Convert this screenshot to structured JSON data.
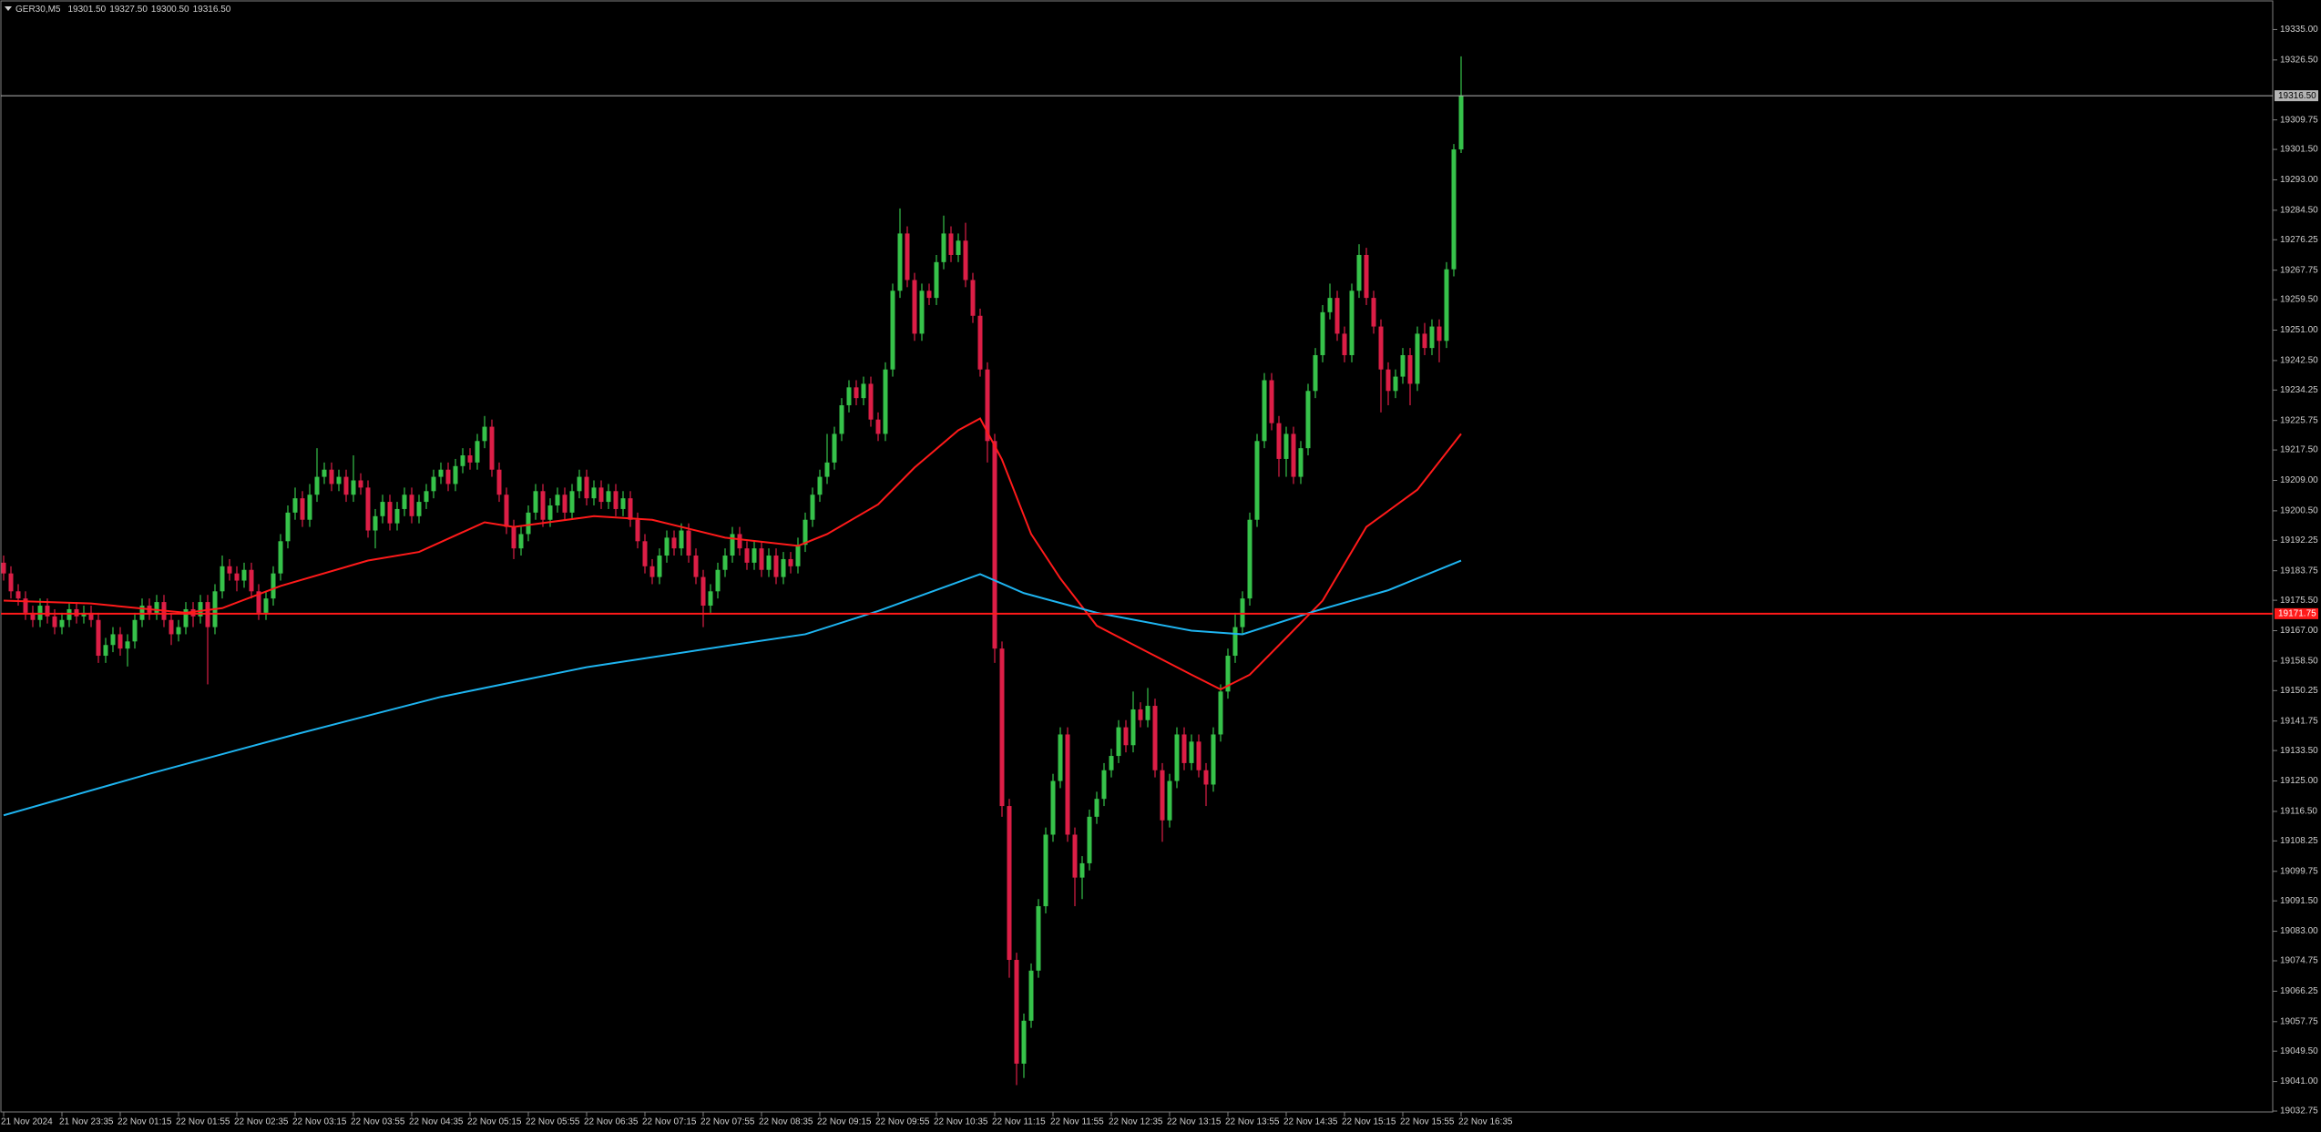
{
  "chart_data": {
    "type": "candlestick",
    "title": "GER30,M5",
    "ohlc_labels": [
      "19301.50",
      "19327.50",
      "19300.50",
      "19316.50"
    ],
    "up_color": "#36c24a",
    "down_color": "#dc1e46",
    "grid": false,
    "categories": [
      "21 Nov 2024",
      null,
      null,
      null,
      null,
      null,
      null,
      null,
      "21 Nov 23:35",
      null,
      null,
      null,
      null,
      null,
      null,
      null,
      "22 Nov 01:15",
      null,
      null,
      null,
      null,
      null,
      null,
      null,
      "22 Nov 01:55",
      null,
      null,
      null,
      null,
      null,
      null,
      null,
      "22 Nov 02:35",
      null,
      null,
      null,
      null,
      null,
      null,
      null,
      "22 Nov 03:15",
      null,
      null,
      null,
      null,
      null,
      null,
      null,
      "22 Nov 03:55",
      null,
      null,
      null,
      null,
      null,
      null,
      null,
      "22 Nov 04:35",
      null,
      null,
      null,
      null,
      null,
      null,
      null,
      "22 Nov 05:15",
      null,
      null,
      null,
      null,
      null,
      null,
      null,
      "22 Nov 05:55",
      null,
      null,
      null,
      null,
      null,
      null,
      null,
      "22 Nov 06:35",
      null,
      null,
      null,
      null,
      null,
      null,
      null,
      "22 Nov 07:15",
      null,
      null,
      null,
      null,
      null,
      null,
      null,
      "22 Nov 07:55",
      null,
      null,
      null,
      null,
      null,
      null,
      null,
      "22 Nov 08:35",
      null,
      null,
      null,
      null,
      null,
      null,
      null,
      "22 Nov 09:15",
      null,
      null,
      null,
      null,
      null,
      null,
      null,
      "22 Nov 09:55",
      null,
      null,
      null,
      null,
      null,
      null,
      null,
      "22 Nov 10:35",
      null,
      null,
      null,
      null,
      null,
      null,
      null,
      "22 Nov 11:15",
      null,
      null,
      null,
      null,
      null,
      null,
      null,
      "22 Nov 11:55",
      null,
      null,
      null,
      null,
      null,
      null,
      null,
      "22 Nov 12:35",
      null,
      null,
      null,
      null,
      null,
      null,
      null,
      "22 Nov 13:15",
      null,
      null,
      null,
      null,
      null,
      null,
      null,
      "22 Nov 13:55",
      null,
      null,
      null,
      null,
      null,
      null,
      null,
      "22 Nov 14:35",
      null,
      null,
      null,
      null,
      null,
      null,
      null,
      "22 Nov 15:15",
      null,
      null,
      null,
      null,
      null,
      null,
      null,
      "22 Nov 15:55",
      null,
      null,
      null,
      null,
      null,
      null,
      null,
      "22 Nov 16:35"
    ],
    "open": [
      19186,
      19183,
      19178,
      19176,
      19172,
      19170,
      19174,
      19171,
      19168,
      19170,
      19173,
      19171,
      19172,
      19170,
      19160,
      19163,
      19166,
      19162,
      19164,
      19170,
      19174,
      19172,
      19175,
      19170,
      19166,
      19168,
      19173,
      19171,
      19175,
      19168,
      19178,
      19185,
      19183,
      19181,
      19184,
      19178,
      19172,
      19176,
      19183,
      19192,
      19200,
      19204,
      19198,
      19205,
      19210,
      19212,
      19208,
      19210,
      19205,
      19209,
      19207,
      19195,
      19199,
      19203,
      19197,
      19201,
      19205,
      19199,
      19203,
      19206,
      19210,
      19212,
      19208,
      19213,
      19216,
      19214,
      19220,
      19224,
      19212,
      19205,
      19196,
      19190,
      19194,
      19200,
      19206,
      19198,
      19202,
      19205,
      19200,
      19206,
      19210,
      19204,
      19207,
      19203,
      19206,
      19201,
      19204,
      19198,
      19192,
      19185,
      19182,
      19188,
      19193,
      19190,
      19195,
      19188,
      19182,
      19174,
      19178,
      19184,
      19188,
      19194,
      19190,
      19186,
      19190,
      19184,
      19188,
      19182,
      19187,
      19185,
      19191,
      19198,
      19205,
      19210,
      19214,
      19222,
      19230,
      19235,
      19232,
      19236,
      19226,
      19222,
      19240,
      19262,
      19278,
      19265,
      19250,
      19262,
      19260,
      19270,
      19278,
      19272,
      19276,
      19265,
      19255,
      19240,
      19220,
      19162,
      19118,
      19075,
      19046,
      19058,
      19072,
      19090,
      19110,
      19125,
      19138,
      19110,
      19098,
      19102,
      19115,
      19120,
      19128,
      19132,
      19140,
      19135,
      19145,
      19142,
      19146,
      19128,
      19114,
      19125,
      19138,
      19130,
      19136,
      19128,
      19124,
      19138,
      19150,
      19160,
      19168,
      19176,
      19198,
      19220,
      19237,
      19225,
      19215,
      19222,
      19210,
      19218,
      19234,
      19244,
      19256,
      19260,
      19250,
      19244,
      19262,
      19272,
      19260,
      19252,
      19240,
      19234,
      19238,
      19244,
      19236,
      19250,
      19246,
      19252,
      19248,
      19268,
      19301.5
    ],
    "high": [
      19188,
      19185,
      19180,
      19178,
      19174,
      19176,
      19176,
      19173,
      19172,
      19175,
      19175,
      19174,
      19174,
      19172,
      19165,
      19168,
      19168,
      19166,
      19172,
      19176,
      19176,
      19177,
      19177,
      19172,
      19170,
      19175,
      19175,
      19177,
      19177,
      19180,
      19188,
      19187,
      19185,
      19186,
      19186,
      19180,
      19178,
      19185,
      19194,
      19202,
      19207,
      19206,
      19208,
      19218,
      19214,
      19214,
      19212,
      19212,
      19216,
      19211,
      19209,
      19201,
      19205,
      19205,
      19203,
      19207,
      19207,
      19205,
      19208,
      19212,
      19214,
      19214,
      19215,
      19218,
      19218,
      19222,
      19227,
      19226,
      19214,
      19207,
      19198,
      19196,
      19202,
      19208,
      19208,
      19204,
      19207,
      19207,
      19208,
      19212,
      19212,
      19209,
      19209,
      19208,
      19208,
      19206,
      19206,
      19200,
      19194,
      19187,
      19190,
      19195,
      19195,
      19197,
      19197,
      19190,
      19184,
      19180,
      19186,
      19190,
      19196,
      19196,
      19192,
      19192,
      19192,
      19190,
      19190,
      19189,
      19189,
      19193,
      19200,
      19207,
      19212,
      19222,
      19224,
      19232,
      19237,
      19237,
      19238,
      19238,
      19228,
      19242,
      19264,
      19285,
      19280,
      19267,
      19264,
      19264,
      19272,
      19283,
      19280,
      19278,
      19281,
      19267,
      19257,
      19242,
      19222,
      19164,
      19120,
      19077,
      19060,
      19074,
      19092,
      19112,
      19127,
      19140,
      19140,
      19112,
      19104,
      19117,
      19122,
      19130,
      19134,
      19142,
      19142,
      19150,
      19147,
      19151,
      19148,
      19130,
      19127,
      19140,
      19140,
      19138,
      19138,
      19130,
      19140,
      19152,
      19162,
      19172,
      19178,
      19200,
      19222,
      19239,
      19239,
      19227,
      19224,
      19224,
      19220,
      19236,
      19246,
      19258,
      19264,
      19262,
      19252,
      19264,
      19275,
      19274,
      19262,
      19254,
      19242,
      19240,
      19246,
      19246,
      19252,
      19253,
      19254,
      19254,
      19270,
      19303,
      19327.5
    ],
    "low": [
      19181,
      19176,
      19174,
      19170,
      19168,
      19168,
      19169,
      19166,
      19166,
      19168,
      19169,
      19169,
      19168,
      19158,
      19158,
      19161,
      19160,
      19157,
      19162,
      19168,
      19170,
      19170,
      19168,
      19163,
      19164,
      19166,
      19168,
      19169,
      19152,
      19166,
      19176,
      19181,
      19178,
      19179,
      19176,
      19170,
      19170,
      19174,
      19181,
      19190,
      19198,
      19196,
      19196,
      19203,
      19208,
      19206,
      19206,
      19203,
      19203,
      19205,
      19193,
      19190,
      19197,
      19195,
      19195,
      19199,
      19197,
      19197,
      19201,
      19204,
      19208,
      19206,
      19206,
      19211,
      19212,
      19212,
      19218,
      19210,
      19203,
      19194,
      19187,
      19188,
      19192,
      19198,
      19196,
      19196,
      19200,
      19198,
      19198,
      19204,
      19202,
      19202,
      19201,
      19201,
      19199,
      19199,
      19196,
      19190,
      19183,
      19180,
      19180,
      19186,
      19188,
      19188,
      19186,
      19180,
      19168,
      19172,
      19176,
      19182,
      19186,
      19188,
      19184,
      19184,
      19182,
      19182,
      19180,
      19180,
      19183,
      19183,
      19189,
      19196,
      19203,
      19208,
      19212,
      19220,
      19228,
      19230,
      19230,
      19224,
      19220,
      19220,
      19238,
      19260,
      19263,
      19248,
      19248,
      19258,
      19258,
      19268,
      19270,
      19270,
      19263,
      19253,
      19238,
      19214,
      19158,
      19115,
      19070,
      19040,
      19042,
      19056,
      19070,
      19088,
      19108,
      19123,
      19108,
      19090,
      19092,
      19100,
      19113,
      19118,
      19126,
      19130,
      19133,
      19133,
      19140,
      19140,
      19126,
      19108,
      19112,
      19123,
      19128,
      19128,
      19126,
      19118,
      19122,
      19136,
      19148,
      19158,
      19166,
      19174,
      19196,
      19218,
      19223,
      19210,
      19210,
      19208,
      19208,
      19216,
      19232,
      19242,
      19254,
      19248,
      19242,
      19242,
      19260,
      19258,
      19250,
      19228,
      19230,
      19232,
      19236,
      19230,
      19234,
      19244,
      19244,
      19242,
      19246,
      19266,
      19300.5
    ],
    "close": [
      19183,
      19178,
      19176,
      19172,
      19170,
      19174,
      19171,
      19168,
      19170,
      19173,
      19171,
      19172,
      19170,
      19160,
      19163,
      19166,
      19162,
      19164,
      19170,
      19174,
      19172,
      19175,
      19170,
      19166,
      19168,
      19173,
      19171,
      19175,
      19168,
      19178,
      19185,
      19183,
      19181,
      19184,
      19178,
      19172,
      19176,
      19183,
      19192,
      19200,
      19204,
      19198,
      19205,
      19210,
      19212,
      19208,
      19210,
      19205,
      19209,
      19207,
      19195,
      19199,
      19203,
      19197,
      19201,
      19205,
      19199,
      19203,
      19206,
      19210,
      19212,
      19208,
      19213,
      19216,
      19214,
      19220,
      19224,
      19212,
      19205,
      19196,
      19190,
      19194,
      19200,
      19206,
      19198,
      19202,
      19205,
      19200,
      19206,
      19210,
      19204,
      19207,
      19203,
      19206,
      19201,
      19204,
      19198,
      19192,
      19185,
      19182,
      19188,
      19193,
      19190,
      19195,
      19188,
      19182,
      19174,
      19178,
      19184,
      19188,
      19194,
      19190,
      19186,
      19190,
      19184,
      19188,
      19182,
      19187,
      19185,
      19191,
      19198,
      19205,
      19210,
      19214,
      19222,
      19230,
      19235,
      19232,
      19236,
      19226,
      19222,
      19240,
      19262,
      19278,
      19265,
      19250,
      19262,
      19260,
      19270,
      19278,
      19272,
      19276,
      19265,
      19255,
      19240,
      19220,
      19162,
      19118,
      19075,
      19046,
      19058,
      19072,
      19090,
      19110,
      19125,
      19138,
      19110,
      19098,
      19102,
      19115,
      19120,
      19128,
      19132,
      19140,
      19135,
      19145,
      19142,
      19146,
      19128,
      19114,
      19125,
      19138,
      19130,
      19136,
      19128,
      19124,
      19138,
      19150,
      19160,
      19168,
      19176,
      19198,
      19220,
      19237,
      19225,
      19215,
      19222,
      19210,
      19218,
      19234,
      19244,
      19256,
      19260,
      19250,
      19244,
      19262,
      19272,
      19260,
      19252,
      19240,
      19234,
      19238,
      19244,
      19236,
      19250,
      19246,
      19252,
      19248,
      19268,
      19301.5,
      19316.5
    ],
    "lines": [
      {
        "color": "#ff1a1a",
        "x": [
          0,
          12,
          25,
          30,
          38,
          50,
          57,
          66,
          70,
          81,
          89,
          99,
          109,
          113,
          120,
          125,
          131,
          134,
          137,
          141,
          145,
          150,
          157,
          163,
          167,
          171,
          176,
          181,
          187,
          194,
          200
        ],
        "values": [
          19175.4,
          19174.6,
          19172,
          19173.3,
          19179.5,
          19186.6,
          19189,
          19197.3,
          19196,
          19199,
          19198,
          19193,
          19190.7,
          19194,
          19202.3,
          19212.6,
          19223,
          19226.3,
          19214.8,
          19194,
          19181.6,
          19168.4,
          19161,
          19154.7,
          19150.6,
          19154.7,
          19165,
          19175.4,
          19196,
          19206.4,
          19222
        ]
      },
      {
        "color": "#1eb4f0",
        "x": [
          0,
          20,
          40,
          60,
          80,
          100,
          110,
          120,
          134,
          140,
          150,
          163,
          170,
          180,
          190,
          200
        ],
        "values": [
          19115.4,
          19127,
          19138,
          19148.5,
          19156.8,
          19163,
          19166,
          19172.5,
          19182.8,
          19177.5,
          19172,
          19167,
          19166,
          19172.5,
          19178.3,
          19186.6
        ]
      }
    ],
    "price_lines": [
      {
        "value": 19316.5,
        "label": "19316.50",
        "color": "#b4b4b4"
      },
      {
        "value": 19171.75,
        "label": "19171.75",
        "color": "#ff1a1a"
      }
    ],
    "ylim": [
      19032.5,
      19343
    ],
    "yticks": [
      {
        "value": 19335,
        "label": "19335.00"
      },
      {
        "value": 19326.5,
        "label": "19326.50"
      },
      {
        "value": 19309.75,
        "label": "19309.75"
      },
      {
        "value": 19301.5,
        "label": "19301.50"
      },
      {
        "value": 19293,
        "label": "19293.00"
      },
      {
        "value": 19284.5,
        "label": "19284.50"
      },
      {
        "value": 19276.25,
        "label": "19276.25"
      },
      {
        "value": 19267.75,
        "label": "19267.75"
      },
      {
        "value": 19259.5,
        "label": "19259.50"
      },
      {
        "value": 19251,
        "label": "19251.00"
      },
      {
        "value": 19242.5,
        "label": "19242.50"
      },
      {
        "value": 19234.25,
        "label": "19234.25"
      },
      {
        "value": 19225.75,
        "label": "19225.75"
      },
      {
        "value": 19217.5,
        "label": "19217.50"
      },
      {
        "value": 19209,
        "label": "19209.00"
      },
      {
        "value": 19200.5,
        "label": "19200.50"
      },
      {
        "value": 19192.25,
        "label": "19192.25"
      },
      {
        "value": 19183.75,
        "label": "19183.75"
      },
      {
        "value": 19175.5,
        "label": "19175.50"
      },
      {
        "value": 19167,
        "label": "19167.00"
      },
      {
        "value": 19158.5,
        "label": "19158.50"
      },
      {
        "value": 19150.25,
        "label": "19150.25"
      },
      {
        "value": 19141.75,
        "label": "19141.75"
      },
      {
        "value": 19133.5,
        "label": "19133.50"
      },
      {
        "value": 19125,
        "label": "19125.00"
      },
      {
        "value": 19116.5,
        "label": "19116.50"
      },
      {
        "value": 19108.25,
        "label": "19108.25"
      },
      {
        "value": 19099.75,
        "label": "19099.75"
      },
      {
        "value": 19091.5,
        "label": "19091.50"
      },
      {
        "value": 19083,
        "label": "19083.00"
      },
      {
        "value": 19074.75,
        "label": "19074.75"
      },
      {
        "value": 19066.25,
        "label": "19066.25"
      },
      {
        "value": 19057.75,
        "label": "19057.75"
      },
      {
        "value": 19049.5,
        "label": "19049.50"
      },
      {
        "value": 19041,
        "label": "19041.00"
      },
      {
        "value": 19032.75,
        "label": "19032.75"
      }
    ]
  }
}
